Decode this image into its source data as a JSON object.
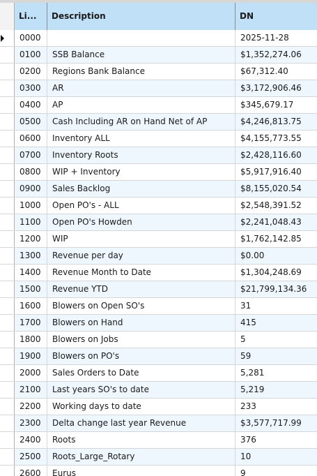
{
  "header": {
    "line": "Li...",
    "description": "Description",
    "dn": "DN"
  },
  "icons": {
    "current_row": "row-indicator-arrow-icon"
  },
  "rows": [
    {
      "line": "0000",
      "description": "",
      "dn": "2025-11-28"
    },
    {
      "line": "0100",
      "description": "SSB Balance",
      "dn": "$1,352,274.06"
    },
    {
      "line": "0200",
      "description": "Regions Bank Balance",
      "dn": "$67,312.40"
    },
    {
      "line": "0300",
      "description": "AR",
      "dn": "$3,172,906.46"
    },
    {
      "line": "0400",
      "description": "AP",
      "dn": "$345,679.17"
    },
    {
      "line": "0500",
      "description": "Cash Including AR on Hand Net of AP",
      "dn": "$4,246,813.75"
    },
    {
      "line": "0600",
      "description": "Inventory ALL",
      "dn": "$4,155,773.55"
    },
    {
      "line": "0700",
      "description": "Inventory Roots",
      "dn": "$2,428,116.60"
    },
    {
      "line": "0800",
      "description": "WIP + Inventory",
      "dn": "$5,917,916.40"
    },
    {
      "line": "0900",
      "description": "Sales Backlog",
      "dn": "$8,155,020.54"
    },
    {
      "line": "1000",
      "description": "Open PO's - ALL",
      "dn": "$2,548,391.52"
    },
    {
      "line": "1100",
      "description": "Open PO's Howden",
      "dn": "$2,241,048.43"
    },
    {
      "line": "1200",
      "description": "WIP",
      "dn": "$1,762,142.85"
    },
    {
      "line": "1300",
      "description": "Revenue per day",
      "dn": "$0.00"
    },
    {
      "line": "1400",
      "description": "Revenue Month to Date",
      "dn": "$1,304,248.69"
    },
    {
      "line": "1500",
      "description": "Revenue YTD",
      "dn": "$21,799,134.36"
    },
    {
      "line": "1600",
      "description": "Blowers on Open SO's",
      "dn": "31"
    },
    {
      "line": "1700",
      "description": "Blowers on Hand",
      "dn": "415"
    },
    {
      "line": "1800",
      "description": "Blowers on Jobs",
      "dn": "5"
    },
    {
      "line": "1900",
      "description": "Blowers on PO's",
      "dn": "59"
    },
    {
      "line": "2000",
      "description": "Sales Orders to Date",
      "dn": "5,281"
    },
    {
      "line": "2100",
      "description": "Last years SO's to date",
      "dn": "5,219"
    },
    {
      "line": "2200",
      "description": "Working days to date",
      "dn": "233"
    },
    {
      "line": "2300",
      "description": "Delta change last year Revenue",
      "dn": "$3,577,717.99"
    },
    {
      "line": "2400",
      "description": "Roots",
      "dn": "376"
    },
    {
      "line": "2500",
      "description": "Roots_Large_Rotary",
      "dn": "10"
    },
    {
      "line": "2600",
      "description": "Eurus",
      "dn": "9"
    }
  ]
}
